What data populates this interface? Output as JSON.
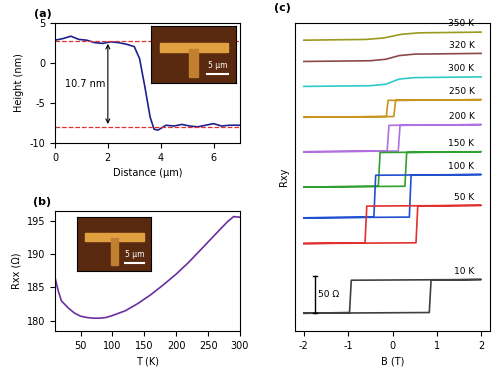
{
  "chart_data": [
    {
      "type": "line",
      "panel": "(a)",
      "x_label": "Distance (μm)",
      "y_label": "Height (nm)",
      "x": [
        0,
        0.3,
        0.6,
        0.9,
        1.2,
        1.5,
        1.8,
        2.1,
        2.4,
        2.7,
        3.0,
        3.2,
        3.4,
        3.6,
        3.75,
        3.9,
        4.2,
        4.5,
        4.8,
        5.1,
        5.4,
        5.7,
        6.0,
        6.3,
        6.6,
        7.0
      ],
      "series": [
        {
          "name": "Height",
          "color": "#1f1f8f",
          "values": [
            2.8,
            3.0,
            3.3,
            2.9,
            2.8,
            2.5,
            2.4,
            2.6,
            2.5,
            2.3,
            2.0,
            0.5,
            -3.0,
            -6.8,
            -8.3,
            -8.4,
            -7.8,
            -7.9,
            -7.7,
            -7.9,
            -8.0,
            -7.8,
            -7.6,
            -7.9,
            -7.8,
            -7.8
          ]
        }
      ],
      "ref_lines": {
        "values": [
          2.7,
          -8.0
        ],
        "color": "#e03030",
        "line_style": "dashed"
      },
      "annotation": {
        "text": "10.7 nm",
        "x": 2.0,
        "y_top": 2.7,
        "y_bottom": -8.0
      },
      "inset": {
        "label": "5 μm"
      },
      "xlim": [
        0,
        7
      ],
      "xticks": [
        0,
        2,
        4,
        6
      ],
      "ylim": [
        -10,
        5
      ],
      "yticks": [
        -10,
        -5,
        0,
        5
      ]
    },
    {
      "type": "line",
      "panel": "(b)",
      "x_label": "T (K)",
      "y_label": "Rxx (Ω)",
      "x": [
        10,
        15,
        20,
        30,
        40,
        50,
        60,
        70,
        80,
        90,
        100,
        120,
        140,
        160,
        180,
        200,
        220,
        240,
        260,
        280,
        290,
        300
      ],
      "series": [
        {
          "name": "Rxx",
          "color": "#6a2fa0",
          "values": [
            186.5,
            184.5,
            183.0,
            182.0,
            181.2,
            180.7,
            180.5,
            180.4,
            180.4,
            180.5,
            180.8,
            181.5,
            182.6,
            183.9,
            185.4,
            187.0,
            188.8,
            190.8,
            192.8,
            194.8,
            195.6,
            195.5
          ]
        }
      ],
      "inset": {
        "label": "5 μm"
      },
      "xlim": [
        10,
        300
      ],
      "xticks": [
        50,
        100,
        150,
        200,
        250,
        300
      ],
      "ylim": [
        178.5,
        196.5
      ],
      "yticks": [
        180,
        185,
        190,
        195
      ]
    },
    {
      "type": "line",
      "panel": "(c)",
      "x_label": "B (T)",
      "y_label": "Rxy",
      "tick_labels": "x",
      "scale_bar": {
        "label": "50 Ω",
        "value": 50
      },
      "xlim": [
        -2.2,
        2.2
      ],
      "xticks": [
        -2,
        -1,
        0,
        1,
        2
      ],
      "ylim": [
        -20,
        400
      ],
      "yticks": [],
      "series": [
        {
          "name": "350 K",
          "color": "#9a9a20",
          "x": [
            -2,
            -0.6,
            -0.2,
            0,
            0.2,
            0.6,
            2
          ],
          "values": [
            376,
            377,
            379,
            381.5,
            384,
            386,
            387
          ]
        },
        {
          "name": "320 K",
          "color": "#8b4a4a",
          "x": [
            -2,
            -0.5,
            -0.15,
            0,
            0.15,
            0.5,
            2
          ],
          "values": [
            347,
            348,
            350,
            352.5,
            355,
            357,
            358
          ]
        },
        {
          "name": "300 K",
          "color": "#30c8c8",
          "x": [
            -2,
            -0.5,
            -0.15,
            0,
            0.15,
            0.5,
            2
          ],
          "values": [
            313,
            314,
            316,
            319.5,
            323,
            325,
            326
          ]
        },
        {
          "name": "250 K",
          "color": "#c8961e",
          "x": [
            -2,
            0.03,
            0.07,
            2,
            -0.1,
            -0.14,
            -2
          ],
          "values": [
            271,
            272,
            294,
            295,
            294,
            272,
            271
          ]
        },
        {
          "name": "200 K",
          "color": "#b070e0",
          "x": [
            -2,
            0.13,
            0.17,
            2,
            -0.08,
            -0.12,
            -2
          ],
          "values": [
            224,
            225,
            260,
            261,
            260,
            225,
            224
          ]
        },
        {
          "name": "150 K",
          "color": "#30a030",
          "x": [
            -2,
            0.28,
            0.32,
            2,
            -0.28,
            -0.32,
            -2
          ],
          "values": [
            176,
            177,
            223,
            224,
            223,
            177,
            176
          ]
        },
        {
          "name": "100 K",
          "color": "#2050d0",
          "x": [
            -2,
            0.38,
            0.42,
            2,
            -0.38,
            -0.42,
            -2
          ],
          "values": [
            134,
            135,
            192,
            193,
            192,
            135,
            134
          ]
        },
        {
          "name": "50 K",
          "color": "#e03030",
          "x": [
            -2,
            0.53,
            0.57,
            2,
            -0.58,
            -0.62,
            -2
          ],
          "values": [
            99,
            100,
            150,
            151,
            150,
            100,
            99
          ]
        },
        {
          "name": "10 K",
          "color": "#404040",
          "x": [
            -2,
            0.83,
            0.87,
            2,
            -0.93,
            -0.97,
            -2
          ],
          "values": [
            4,
            5,
            49,
            50,
            49,
            5,
            4
          ]
        }
      ]
    }
  ]
}
